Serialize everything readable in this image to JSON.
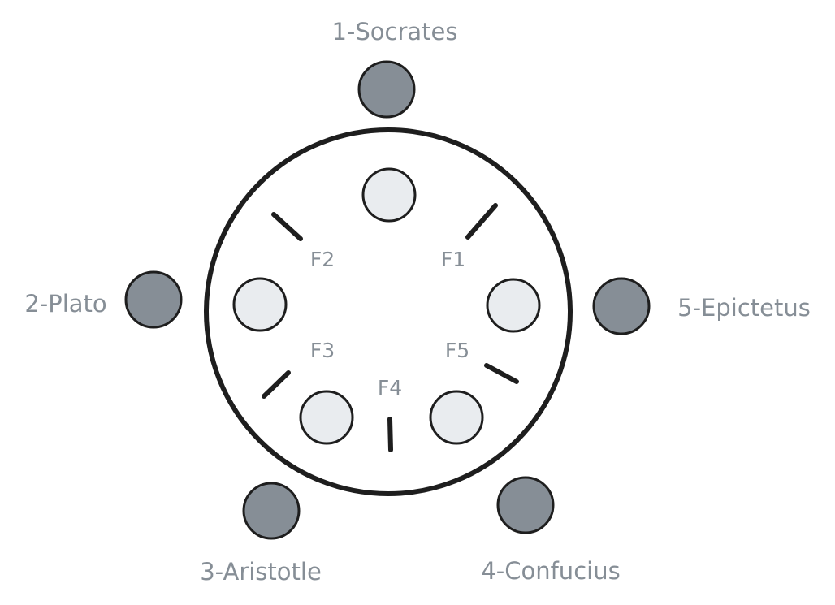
{
  "colors": {
    "philosopher_fill": "#868e96",
    "plate_fill": "#e9ecef",
    "stroke": "#1e1e1e",
    "label_text": "#868e96",
    "background": "#ffffff"
  },
  "philosophers": [
    {
      "label": "1-Socrates"
    },
    {
      "label": "2-Plato"
    },
    {
      "label": "3-Aristotle"
    },
    {
      "label": "4-Confucius"
    },
    {
      "label": "5-Epictetus"
    }
  ],
  "forks": [
    {
      "label": "F1"
    },
    {
      "label": "F2"
    },
    {
      "label": "F3"
    },
    {
      "label": "F4"
    },
    {
      "label": "F5"
    }
  ]
}
